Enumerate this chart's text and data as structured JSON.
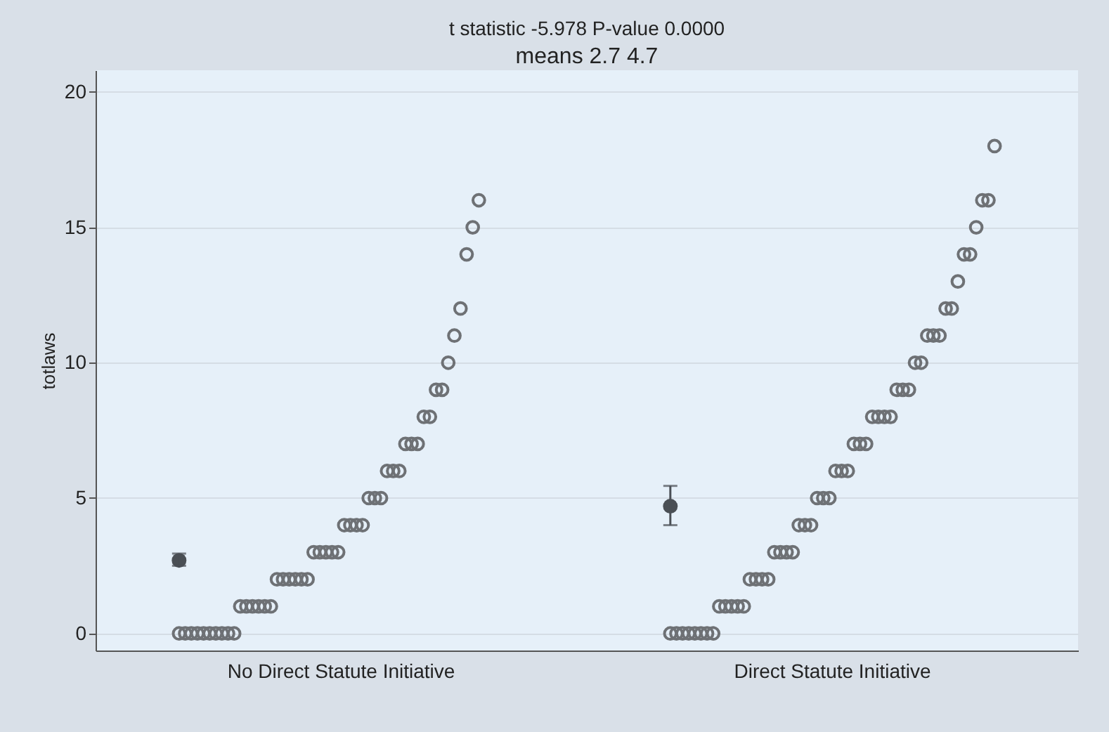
{
  "chart_data": {
    "type": "scatter",
    "title": "t statistic -5.978  P-value 0.0000",
    "subtitle": "means 2.7  4.7",
    "ylabel": "totlaws",
    "categories": [
      "No Direct Statute Initiative",
      "Direct Statute Initiative"
    ],
    "ylim": [
      -0.63,
      20.8
    ],
    "yticks": [
      0,
      5,
      10,
      15,
      20
    ],
    "grid": "y",
    "marker": "circle",
    "series": [
      {
        "color": "#4a4f55",
        "x": [
          "No Direct Statute Initiative",
          "Direct Statute Initiative"
        ],
        "values": [
          2.7,
          4.7
        ],
        "errors": [
          [
            2.5,
            2.95
          ],
          [
            4.0,
            5.45
          ]
        ]
      },
      {
        "color": "#6e7175",
        "x": [
          "No Direct Statute Initiative",
          "No Direct Statute Initiative",
          "No Direct Statute Initiative",
          "No Direct Statute Initiative",
          "No Direct Statute Initiative",
          "No Direct Statute Initiative",
          "No Direct Statute Initiative",
          "No Direct Statute Initiative",
          "No Direct Statute Initiative",
          "No Direct Statute Initiative",
          "No Direct Statute Initiative",
          "No Direct Statute Initiative",
          "No Direct Statute Initiative",
          "No Direct Statute Initiative",
          "No Direct Statute Initiative",
          "No Direct Statute Initiative",
          "No Direct Statute Initiative",
          "No Direct Statute Initiative",
          "No Direct Statute Initiative",
          "No Direct Statute Initiative",
          "No Direct Statute Initiative",
          "No Direct Statute Initiative",
          "No Direct Statute Initiative",
          "No Direct Statute Initiative",
          "No Direct Statute Initiative",
          "No Direct Statute Initiative",
          "No Direct Statute Initiative",
          "No Direct Statute Initiative",
          "No Direct Statute Initiative",
          "No Direct Statute Initiative",
          "No Direct Statute Initiative",
          "No Direct Statute Initiative",
          "No Direct Statute Initiative",
          "No Direct Statute Initiative",
          "No Direct Statute Initiative",
          "No Direct Statute Initiative",
          "No Direct Statute Initiative",
          "No Direct Statute Initiative",
          "No Direct Statute Initiative",
          "No Direct Statute Initiative",
          "No Direct Statute Initiative",
          "No Direct Statute Initiative",
          "No Direct Statute Initiative",
          "No Direct Statute Initiative",
          "No Direct Statute Initiative",
          "No Direct Statute Initiative",
          "No Direct Statute Initiative",
          "No Direct Statute Initiative",
          "No Direct Statute Initiative",
          "No Direct Statute Initiative",
          "Direct Statute Initiative",
          "Direct Statute Initiative",
          "Direct Statute Initiative",
          "Direct Statute Initiative",
          "Direct Statute Initiative",
          "Direct Statute Initiative",
          "Direct Statute Initiative",
          "Direct Statute Initiative",
          "Direct Statute Initiative",
          "Direct Statute Initiative",
          "Direct Statute Initiative",
          "Direct Statute Initiative",
          "Direct Statute Initiative",
          "Direct Statute Initiative",
          "Direct Statute Initiative",
          "Direct Statute Initiative",
          "Direct Statute Initiative",
          "Direct Statute Initiative",
          "Direct Statute Initiative",
          "Direct Statute Initiative",
          "Direct Statute Initiative",
          "Direct Statute Initiative",
          "Direct Statute Initiative",
          "Direct Statute Initiative",
          "Direct Statute Initiative",
          "Direct Statute Initiative",
          "Direct Statute Initiative",
          "Direct Statute Initiative",
          "Direct Statute Initiative",
          "Direct Statute Initiative",
          "Direct Statute Initiative",
          "Direct Statute Initiative",
          "Direct Statute Initiative",
          "Direct Statute Initiative",
          "Direct Statute Initiative",
          "Direct Statute Initiative",
          "Direct Statute Initiative",
          "Direct Statute Initiative",
          "Direct Statute Initiative",
          "Direct Statute Initiative",
          "Direct Statute Initiative",
          "Direct Statute Initiative",
          "Direct Statute Initiative",
          "Direct Statute Initiative",
          "Direct Statute Initiative",
          "Direct Statute Initiative",
          "Direct Statute Initiative",
          "Direct Statute Initiative",
          "Direct Statute Initiative",
          "Direct Statute Initiative",
          "Direct Statute Initiative",
          "Direct Statute Initiative",
          "Direct Statute Initiative",
          "Direct Statute Initiative"
        ],
        "values": [
          0,
          0,
          0,
          0,
          0,
          0,
          0,
          0,
          0,
          0,
          1,
          1,
          1,
          1,
          1,
          1,
          2,
          2,
          2,
          2,
          2,
          2,
          3,
          3,
          3,
          3,
          3,
          4,
          4,
          4,
          4,
          5,
          5,
          5,
          6,
          6,
          6,
          7,
          7,
          7,
          8,
          8,
          9,
          9,
          10,
          11,
          12,
          14,
          15,
          16,
          0,
          0,
          0,
          0,
          0,
          0,
          0,
          0,
          1,
          1,
          1,
          1,
          1,
          2,
          2,
          2,
          2,
          3,
          3,
          3,
          3,
          4,
          4,
          4,
          5,
          5,
          5,
          6,
          6,
          6,
          7,
          7,
          7,
          8,
          8,
          8,
          8,
          9,
          9,
          9,
          10,
          10,
          11,
          11,
          11,
          12,
          12,
          13,
          14,
          14,
          15,
          16,
          16,
          18
        ]
      }
    ]
  }
}
